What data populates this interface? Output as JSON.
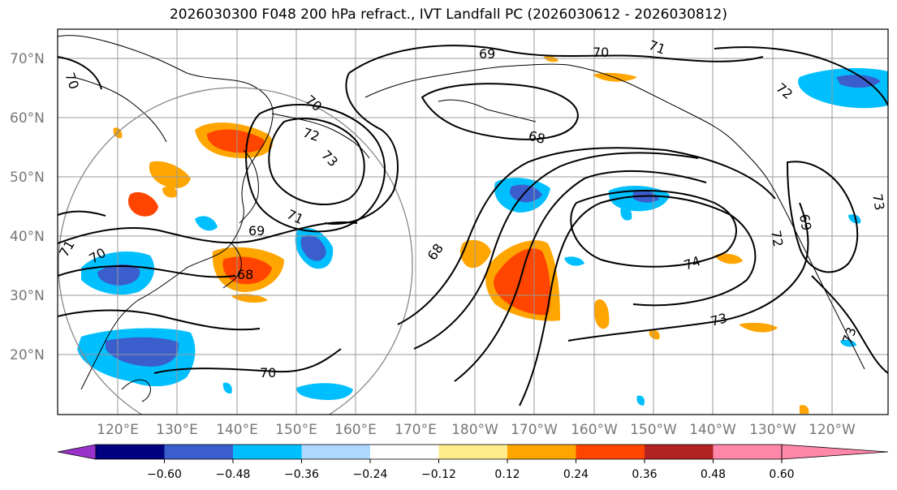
{
  "title": "2026030300 F048 200 hPa refract., IVT Landfall PC (2026030612 - 2026030812)",
  "lat_labels": [
    "70°N",
    "60°N",
    "50°N",
    "40°N",
    "30°N",
    "20°N"
  ],
  "lon_labels": [
    "120°E",
    "130°E",
    "140°E",
    "150°E",
    "160°E",
    "170°E",
    "180°W",
    "170°W",
    "160°W",
    "150°W",
    "140°W",
    "130°W",
    "120°W"
  ],
  "colorbar": {
    "colors": [
      "#9933cc",
      "#000080",
      "#3a5fcd",
      "#00bfff",
      "#add8ff",
      "#ffffff",
      "#ffec8b",
      "#ffa500",
      "#ff4500",
      "#b22222",
      "#ff88aa"
    ],
    "tick_labels": [
      "−0.60",
      "−0.48",
      "−0.36",
      "−0.24",
      "−0.12",
      "0.12",
      "0.24",
      "0.36",
      "0.48",
      "0.60"
    ]
  },
  "contour_labels": [
    "69",
    "70",
    "71",
    "72",
    "73",
    "68",
    "72",
    "73",
    "71",
    "69",
    "70",
    "70",
    "68",
    "68",
    "70",
    "74",
    "73",
    "72",
    "69",
    "70",
    "71",
    "73"
  ]
}
